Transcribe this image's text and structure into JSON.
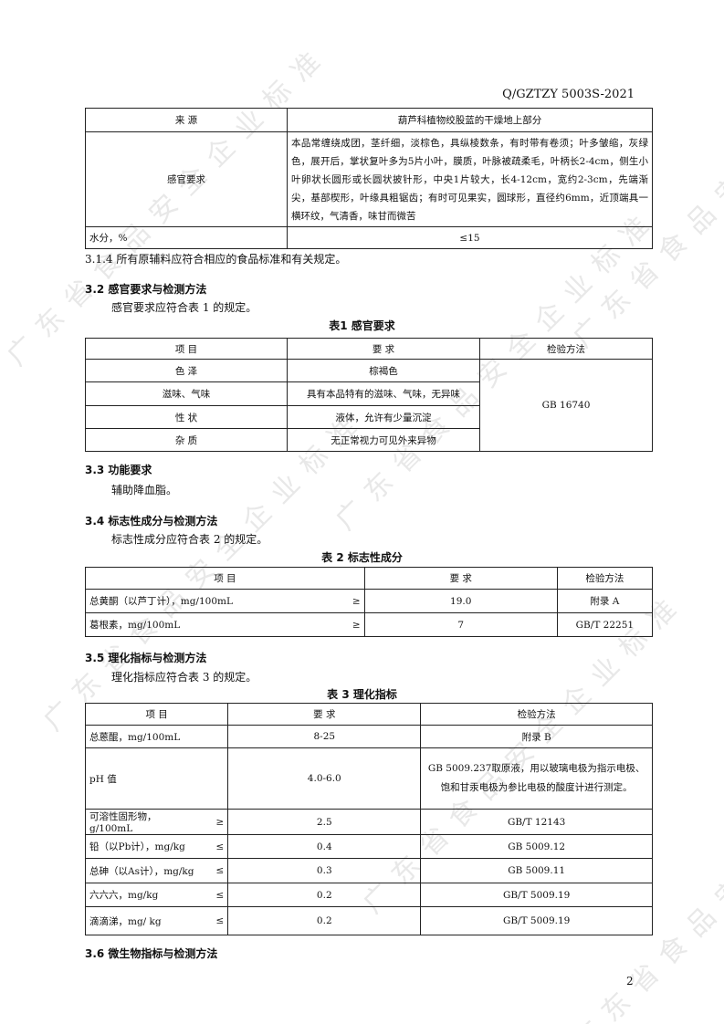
{
  "watermark": "广东省食品安全企业标准",
  "header": {
    "doc_code": "Q/GZTZY  5003S-2021"
  },
  "table0": {
    "rows": [
      {
        "item": "来 源",
        "req": "葫芦科植物绞股蓝的干燥地上部分"
      },
      {
        "item": "感官要求",
        "req": "本品常缠绕成团，茎纤细，淡棕色，具纵棱数条，有时带有卷须；叶多皱缩，灰绿色，展开后，掌状复叶多为5片小叶，膜质，叶脉被疏柔毛，叶柄长2-4cm，侧生小叶卵状长圆形或长圆状披针形，中央1片较大，长4-12cm，宽约2-3cm，先端渐尖，基部楔形，叶缘具粗锯齿；有时可见果实，圆球形，直径约6mm，近顶端具一横环纹，气清香，味甘而微苦"
      },
      {
        "item": "水分，%",
        "req": "≤15"
      }
    ]
  },
  "s314": "3.1.4 所有原辅料应符合相应的食品标准和有关规定。",
  "s32": {
    "title": "3.2  感官要求与检测方法",
    "text": "感官要求应符合表 1 的规定。",
    "caption": "表1   感官要求",
    "headers": [
      "项   目",
      "要   求",
      "检验方法"
    ],
    "rows": [
      {
        "item": "色   泽",
        "req": "棕褐色"
      },
      {
        "item": "滋味、气味",
        "req": "具有本品特有的滋味、气味，无异味"
      },
      {
        "item": "性   状",
        "req": "液体，允许有少量沉淀"
      },
      {
        "item": "杂   质",
        "req": "无正常视力可见外来异物"
      }
    ],
    "method": "GB 16740"
  },
  "s33": {
    "title": "3.3  功能要求",
    "text": "辅助降血脂。"
  },
  "s34": {
    "title": "3.4  标志性成分与检测方法",
    "text": "标志性成分应符合表 2 的规定。",
    "caption": "表 2 标志性成分",
    "headers": [
      "项   目",
      "要   求",
      "检验方法"
    ],
    "rows": [
      {
        "item": "总黄酮（以芦丁计），mg/100mL",
        "sym": "≥",
        "req": "19.0",
        "method": "附录 A"
      },
      {
        "item": "葛根素，mg/100mL",
        "sym": "≥",
        "req": "7",
        "method": "GB/T 22251"
      }
    ]
  },
  "s35": {
    "title": "3.5  理化指标与检测方法",
    "text": "理化指标应符合表 3 的规定。",
    "caption": "表 3   理化指标",
    "headers": [
      "项   目",
      "要   求",
      "检验方法"
    ],
    "rows": [
      {
        "item": "总蒽醌，mg/100mL",
        "sym": "",
        "req": "8-25",
        "method": "附录 B"
      },
      {
        "item": "pH 值",
        "sym": "",
        "req": "4.0-6.0",
        "method": "GB 5009.237取原液，用以玻璃电极为指示电极、饱和甘汞电极为参比电极的酸度计进行测定。"
      },
      {
        "item": "可溶性固形物，g/100mL",
        "sym": "≥",
        "req": "2.5",
        "method": "GB/T 12143"
      },
      {
        "item": "铅（以Pb计），mg/kg",
        "sym": "≤",
        "req": "0.4",
        "method": "GB 5009.12"
      },
      {
        "item": "总砷（以As计），mg/kg",
        "sym": "≤",
        "req": "0.3",
        "method": "GB 5009.11"
      },
      {
        "item": "六六六，mg/kg",
        "sym": "≤",
        "req": "0.2",
        "method": "GB/T 5009.19"
      },
      {
        "item": "滴滴涕，mg/ kg",
        "sym": "≤",
        "req": "0.2",
        "method": "GB/T 5009.19"
      }
    ]
  },
  "s36": {
    "title": "3.6  微生物指标与检测方法"
  },
  "footer": {
    "page_number": "2"
  }
}
